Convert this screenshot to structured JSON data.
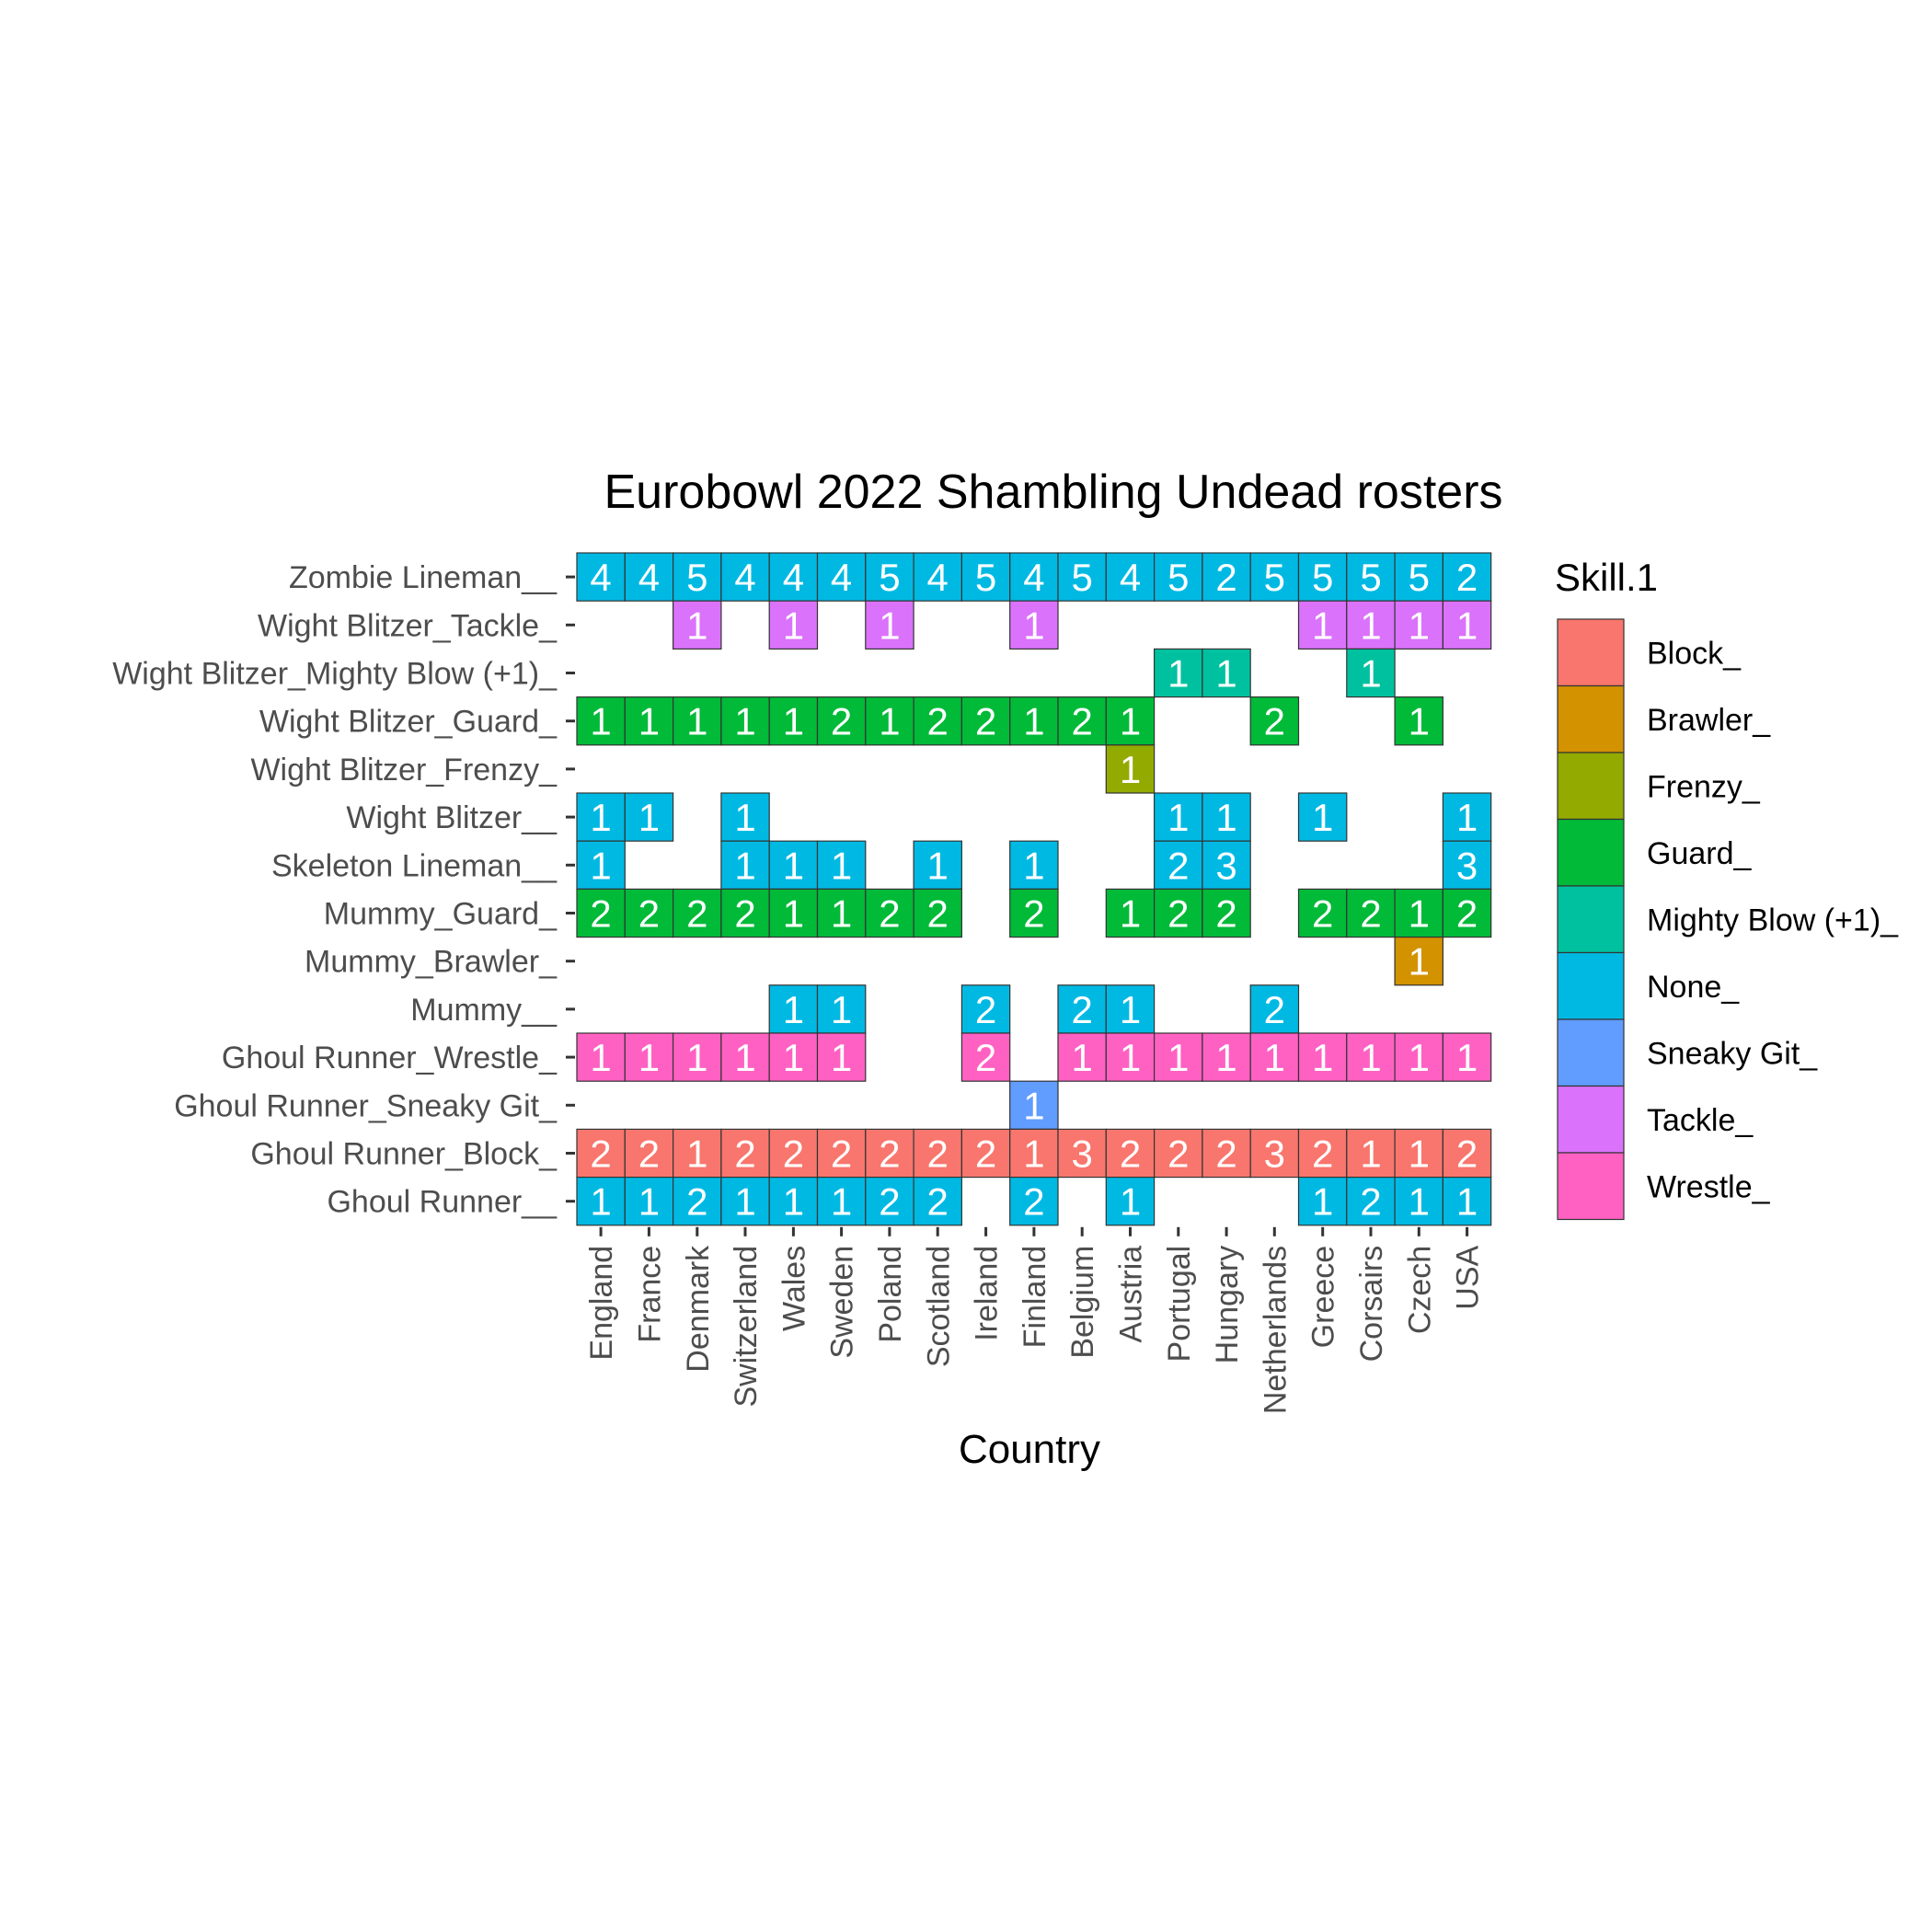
{
  "chart_data": {
    "type": "heatmap",
    "title": "Eurobowl 2022 Shambling Undead rosters",
    "xlabel": "Country",
    "ylabel": "",
    "x": [
      "England",
      "France",
      "Denmark",
      "Switzerland",
      "Wales",
      "Sweden",
      "Poland",
      "Scotland",
      "Ireland",
      "Finland",
      "Belgium",
      "Austria",
      "Portugal",
      "Hungary",
      "Netherlands",
      "Greece",
      "Corsairs",
      "Czech",
      "USA"
    ],
    "y": [
      "Zombie Lineman__",
      "Wight Blitzer_Tackle_",
      "Wight Blitzer_Mighty Blow (+1)_",
      "Wight Blitzer_Guard_",
      "Wight Blitzer_Frenzy_",
      "Wight Blitzer__",
      "Skeleton Lineman__",
      "Mummy_Guard_",
      "Mummy_Brawler_",
      "Mummy__",
      "Ghoul Runner_Wrestle_",
      "Ghoul Runner_Sneaky Git_",
      "Ghoul Runner_Block_",
      "Ghoul Runner__"
    ],
    "row_skill": [
      "None_",
      "Tackle_",
      "Mighty Blow (+1)_",
      "Guard_",
      "Frenzy_",
      "None_",
      "None_",
      "Guard_",
      "Brawler_",
      "None_",
      "Wrestle_",
      "Sneaky Git_",
      "Block_",
      "None_"
    ],
    "values": [
      [
        4,
        4,
        5,
        4,
        4,
        4,
        5,
        4,
        5,
        4,
        5,
        4,
        5,
        2,
        5,
        5,
        5,
        5,
        2
      ],
      [
        null,
        null,
        1,
        null,
        1,
        null,
        1,
        null,
        null,
        1,
        null,
        null,
        null,
        null,
        null,
        1,
        1,
        1,
        1
      ],
      [
        null,
        null,
        null,
        null,
        null,
        null,
        null,
        null,
        null,
        null,
        null,
        null,
        1,
        1,
        null,
        null,
        1,
        null,
        null
      ],
      [
        1,
        1,
        1,
        1,
        1,
        2,
        1,
        2,
        2,
        1,
        2,
        1,
        null,
        null,
        2,
        null,
        null,
        1,
        null
      ],
      [
        null,
        null,
        null,
        null,
        null,
        null,
        null,
        null,
        null,
        null,
        null,
        1,
        null,
        null,
        null,
        null,
        null,
        null,
        null
      ],
      [
        1,
        1,
        null,
        1,
        null,
        null,
        null,
        null,
        null,
        null,
        null,
        null,
        1,
        1,
        null,
        1,
        null,
        null,
        1
      ],
      [
        1,
        null,
        null,
        1,
        1,
        1,
        null,
        1,
        null,
        1,
        null,
        null,
        2,
        3,
        null,
        null,
        null,
        null,
        3
      ],
      [
        2,
        2,
        2,
        2,
        1,
        1,
        2,
        2,
        null,
        2,
        null,
        1,
        2,
        2,
        null,
        2,
        2,
        1,
        2
      ],
      [
        null,
        null,
        null,
        null,
        null,
        null,
        null,
        null,
        null,
        null,
        null,
        null,
        null,
        null,
        null,
        null,
        null,
        1,
        null
      ],
      [
        null,
        null,
        null,
        null,
        1,
        1,
        null,
        null,
        2,
        null,
        2,
        1,
        null,
        null,
        2,
        null,
        null,
        null,
        null
      ],
      [
        1,
        1,
        1,
        1,
        1,
        1,
        null,
        null,
        2,
        null,
        1,
        1,
        1,
        1,
        1,
        1,
        1,
        1,
        1
      ],
      [
        null,
        null,
        null,
        null,
        null,
        null,
        null,
        null,
        null,
        1,
        null,
        null,
        null,
        null,
        null,
        null,
        null,
        null,
        null
      ],
      [
        2,
        2,
        1,
        2,
        2,
        2,
        2,
        2,
        2,
        1,
        3,
        2,
        2,
        2,
        3,
        2,
        1,
        1,
        2
      ],
      [
        1,
        1,
        2,
        1,
        1,
        1,
        2,
        2,
        null,
        2,
        null,
        1,
        null,
        null,
        null,
        1,
        2,
        1,
        1
      ]
    ],
    "legend": {
      "title": "Skill.1",
      "position": "right",
      "items": [
        {
          "label": "Block_",
          "color": "#F8766D"
        },
        {
          "label": "Brawler_",
          "color": "#D39200"
        },
        {
          "label": "Frenzy_",
          "color": "#93AA00"
        },
        {
          "label": "Guard_",
          "color": "#00BA38"
        },
        {
          "label": "Mighty Blow (+1)_",
          "color": "#00C19F"
        },
        {
          "label": "None_",
          "color": "#00B9E3"
        },
        {
          "label": "Sneaky Git_",
          "color": "#619CFF"
        },
        {
          "label": "Tackle_",
          "color": "#DB72FB"
        },
        {
          "label": "Wrestle_",
          "color": "#FF61C3"
        }
      ]
    },
    "grid": false
  }
}
